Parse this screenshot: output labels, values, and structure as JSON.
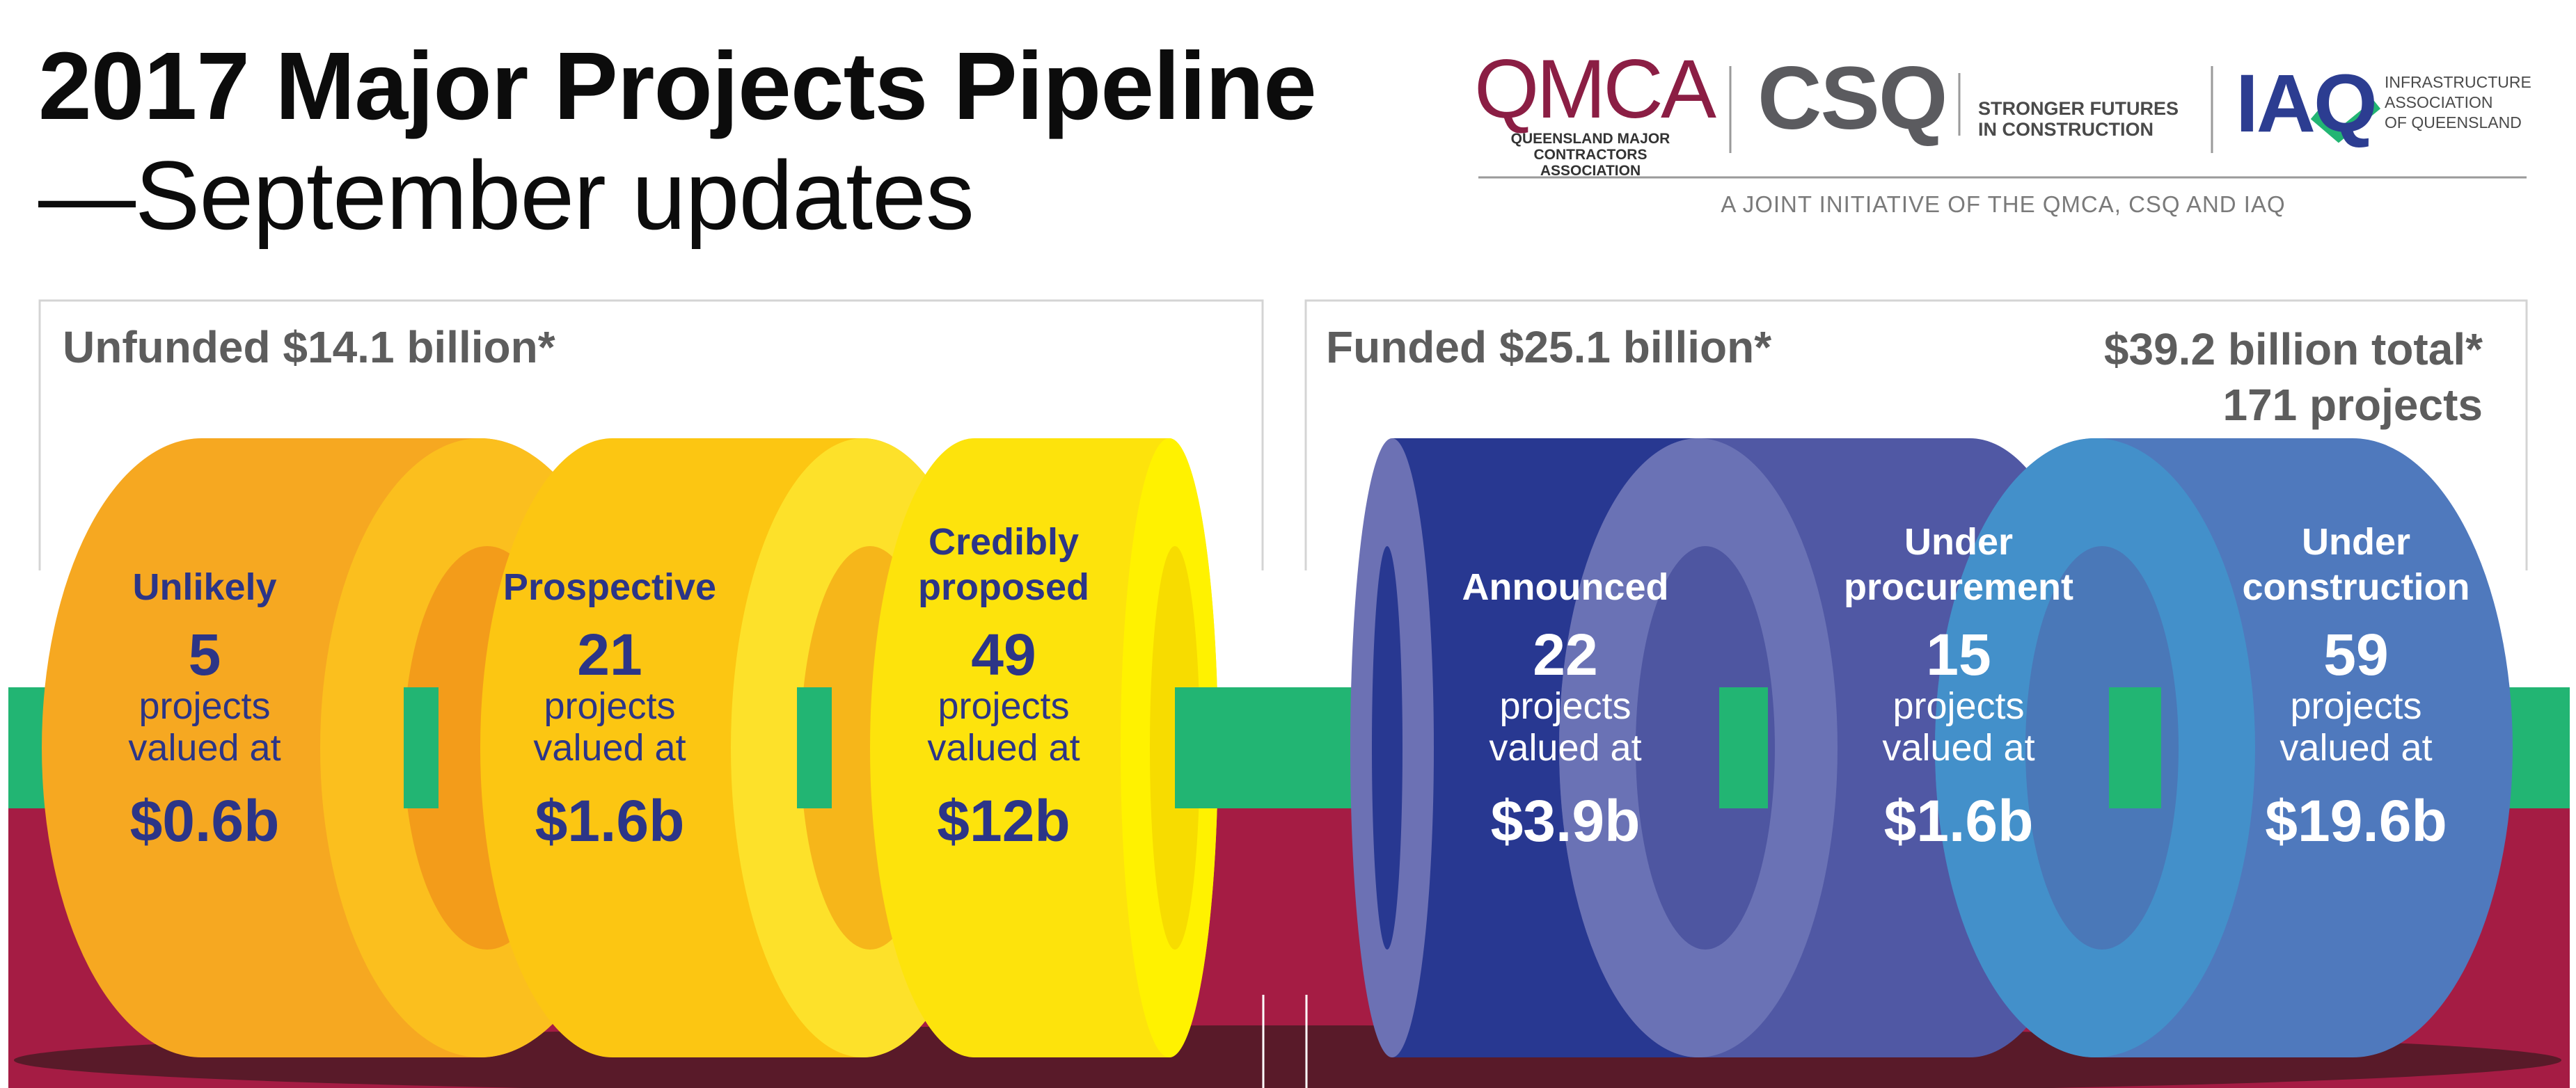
{
  "title": {
    "line1": "2017 Major Projects Pipeline",
    "line2": "—September updates"
  },
  "logos": {
    "qmca": "QMCA",
    "qmca_sub": "QUEENSLAND MAJOR CONTRACTORS ASSOCIATION",
    "csq": "CSQ",
    "csq_sub_1": "STRONGER FUTURES",
    "csq_sub_2": "IN CONSTRUCTION",
    "iaq": "IAQ",
    "iaq_sub_1": "INFRASTRUCTURE",
    "iaq_sub_2": "ASSOCIATION",
    "iaq_sub_3": "OF QUEENSLAND",
    "joint_note": "A JOINT INITIATIVE OF THE QMCA, CSQ AND IAQ"
  },
  "groups": {
    "unfunded": "Unfunded $14.1 billion*",
    "funded": "Funded $25.1 billion*",
    "total_value": "$39.2 billion total*",
    "total_projects": "171 projects"
  },
  "unit_line1": "projects",
  "unit_line2": "valued at",
  "stages": [
    {
      "name_1": "Unlikely",
      "name_2": "",
      "count": "5",
      "value": "$0.6b",
      "color": "#f6a821"
    },
    {
      "name_1": "Prospective",
      "name_2": "",
      "count": "21",
      "value": "$1.6b",
      "color": "#fcc612"
    },
    {
      "name_1": "Credibly",
      "name_2": "proposed",
      "count": "49",
      "value": "$12b",
      "color": "#fde30c"
    },
    {
      "name_1": "Announced",
      "name_2": "",
      "count": "22",
      "value": "$3.9b",
      "color": "#283891"
    },
    {
      "name_1": "Under",
      "name_2": "procurement",
      "count": "15",
      "value": "$1.6b",
      "color": "#5058a4"
    },
    {
      "name_1": "Under",
      "name_2": "construction",
      "count": "59",
      "value": "$19.6b",
      "color": "#4f79bd"
    }
  ],
  "colors": {
    "pipe_green": "#22b573",
    "ground_maroon": "#a51c44",
    "text_dark": "#2c3587"
  }
}
